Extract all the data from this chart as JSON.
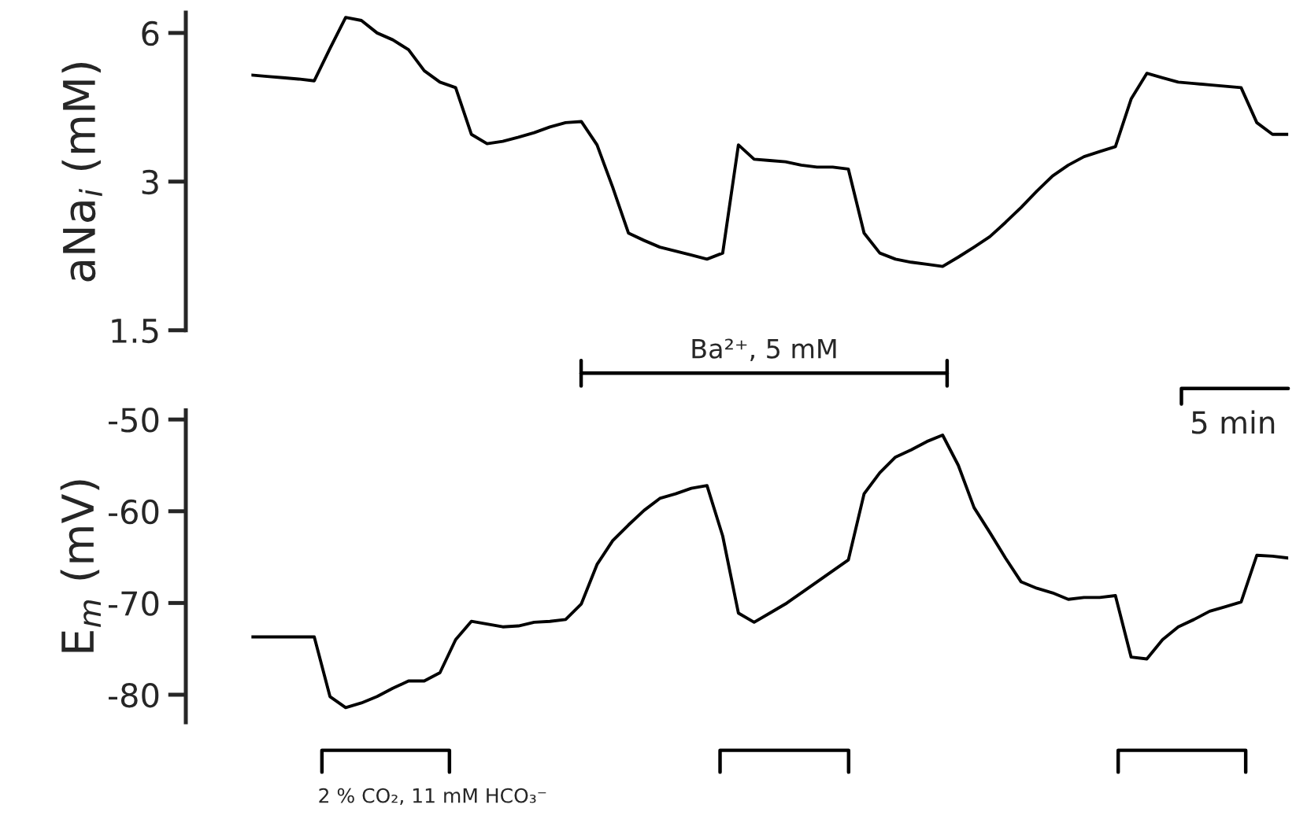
{
  "chart_data": [
    {
      "type": "line",
      "ylabel": "aNa$_{i}$ (mM)",
      "log": true,
      "ylim": [
        1.5,
        6.6
      ],
      "yticks": [
        1.5,
        3,
        6
      ],
      "tick_labels": "y",
      "grid": false,
      "legend": false,
      "marker": "none",
      "line_style": "solid",
      "categories": [
        null,
        null,
        null,
        null,
        null,
        null,
        null,
        null,
        null,
        null,
        null,
        null,
        null,
        null,
        null,
        null,
        null,
        null,
        null,
        null,
        null,
        null,
        null,
        null,
        null,
        null,
        null,
        null,
        null,
        null,
        null,
        null,
        null,
        null,
        null,
        null,
        null,
        null,
        null,
        null,
        null,
        null,
        null,
        null,
        null,
        null,
        null,
        null,
        null,
        null,
        null,
        null,
        null,
        null,
        null,
        null,
        null,
        null,
        null,
        null,
        null,
        null,
        null,
        null,
        null,
        null,
        null
      ],
      "series": [
        {
          "color": "#000000",
          "values": [
            4.93,
            4.9,
            4.87,
            4.84,
            4.8,
            5.58,
            6.45,
            6.36,
            6.0,
            5.81,
            5.55,
            5.03,
            4.77,
            4.65,
            3.74,
            3.58,
            3.62,
            3.69,
            3.77,
            3.87,
            3.95,
            3.97,
            3.56,
            2.92,
            2.36,
            2.28,
            2.21,
            2.17,
            2.13,
            2.09,
            2.15,
            3.56,
            3.33,
            3.31,
            3.29,
            3.24,
            3.21,
            3.21,
            3.18,
            2.36,
            2.15,
            2.09,
            2.06,
            2.04,
            2.02,
            2.11,
            2.21,
            2.32,
            2.48,
            2.66,
            2.87,
            3.08,
            3.24,
            3.37,
            3.45,
            3.53,
            4.41,
            4.97,
            4.87,
            4.77,
            4.74,
            4.71,
            4.68,
            4.65,
            3.95,
            3.74,
            3.74
          ]
        }
      ],
      "annotations": [
        "Ba²⁺, 5 mM"
      ]
    },
    {
      "type": "line",
      "ylabel": "E$_{m}$ (mV)",
      "ylim": [
        -83,
        -49
      ],
      "yticks": [
        -80,
        -70,
        -60,
        -50
      ],
      "tick_labels": "y",
      "grid": false,
      "legend": false,
      "marker": "none",
      "line_style": "solid",
      "categories": [
        null,
        null,
        null,
        null,
        null,
        null,
        null,
        null,
        null,
        null,
        null,
        null,
        null,
        null,
        null,
        null,
        null,
        null,
        null,
        null,
        null,
        null,
        null,
        null,
        null,
        null,
        null,
        null,
        null,
        null,
        null,
        null,
        null,
        null,
        null,
        null,
        null,
        null,
        null,
        null,
        null,
        null,
        null,
        null,
        null,
        null,
        null,
        null,
        null,
        null,
        null,
        null,
        null,
        null,
        null,
        null,
        null,
        null,
        null,
        null,
        null,
        null,
        null,
        null,
        null,
        null,
        null
      ],
      "series": [
        {
          "color": "#000000",
          "values": [
            -73.7,
            -73.7,
            -73.7,
            -73.7,
            -73.7,
            -80.2,
            -81.4,
            -80.9,
            -80.2,
            -79.3,
            -78.5,
            -78.5,
            -77.6,
            -74.0,
            -72.0,
            -72.3,
            -72.6,
            -72.5,
            -72.1,
            -72.0,
            -71.8,
            -70.1,
            -65.8,
            -63.2,
            -61.5,
            -59.9,
            -58.6,
            -58.1,
            -57.5,
            -57.2,
            -62.7,
            -71.1,
            -72.1,
            -71.1,
            -70.1,
            -68.9,
            -67.7,
            -66.5,
            -65.3,
            -58.1,
            -55.8,
            -54.1,
            -53.3,
            -52.4,
            -51.7,
            -55.0,
            -59.6,
            -62.3,
            -65.1,
            -67.7,
            -68.4,
            -68.9,
            -69.6,
            -69.4,
            -69.4,
            -69.2,
            -75.9,
            -76.1,
            -74.0,
            -72.6,
            -71.8,
            -70.9,
            -70.4,
            -69.9,
            -64.8,
            -64.9,
            -65.1
          ]
        }
      ],
      "annotations": [
        "2 % CO₂, 11 mM HCO₃⁻",
        "5 min"
      ]
    }
  ]
}
